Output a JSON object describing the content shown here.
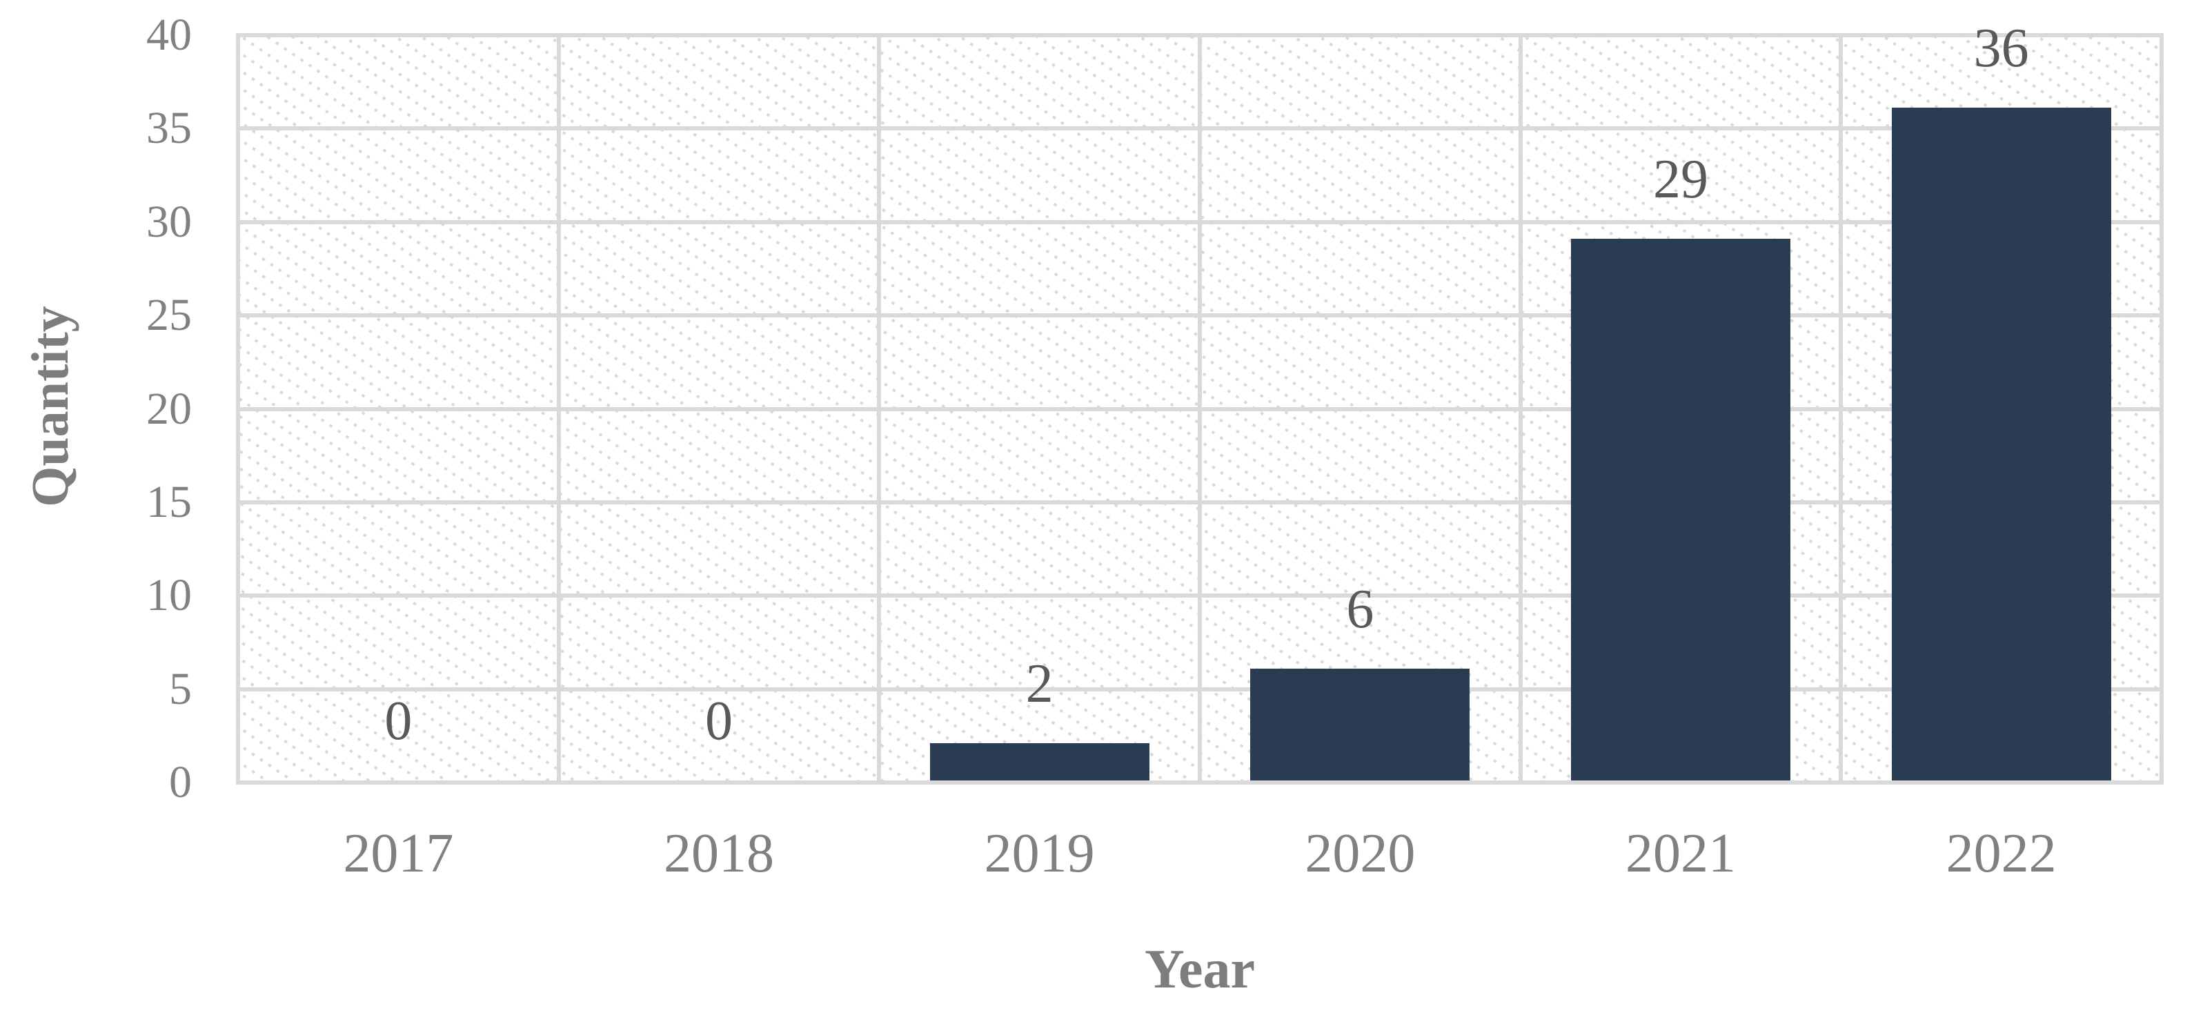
{
  "chart_data": {
    "type": "bar",
    "title": "",
    "xlabel": "Year",
    "ylabel": "Quantity",
    "categories": [
      "2017",
      "2018",
      "2019",
      "2020",
      "2021",
      "2022"
    ],
    "values": [
      0,
      0,
      2,
      6,
      29,
      36
    ],
    "data_labels": [
      "0",
      "0",
      "2",
      "6",
      "29",
      "36"
    ],
    "y_ticks": [
      0,
      5,
      10,
      15,
      20,
      25,
      30,
      35,
      40
    ],
    "ylim": [
      0,
      40
    ],
    "legend": "none",
    "grid": "horizontal and vertical gridlines, solid light gray",
    "plot_background": "white with light gray dashed diagonal hatch (downward)",
    "colors": {
      "bar_fill": "#293c51",
      "gridline": "#d9d9d9",
      "tick_label": "#808080",
      "axis_title": "#7d7d7d",
      "data_label": "#595959",
      "background": "#ffffff"
    }
  }
}
